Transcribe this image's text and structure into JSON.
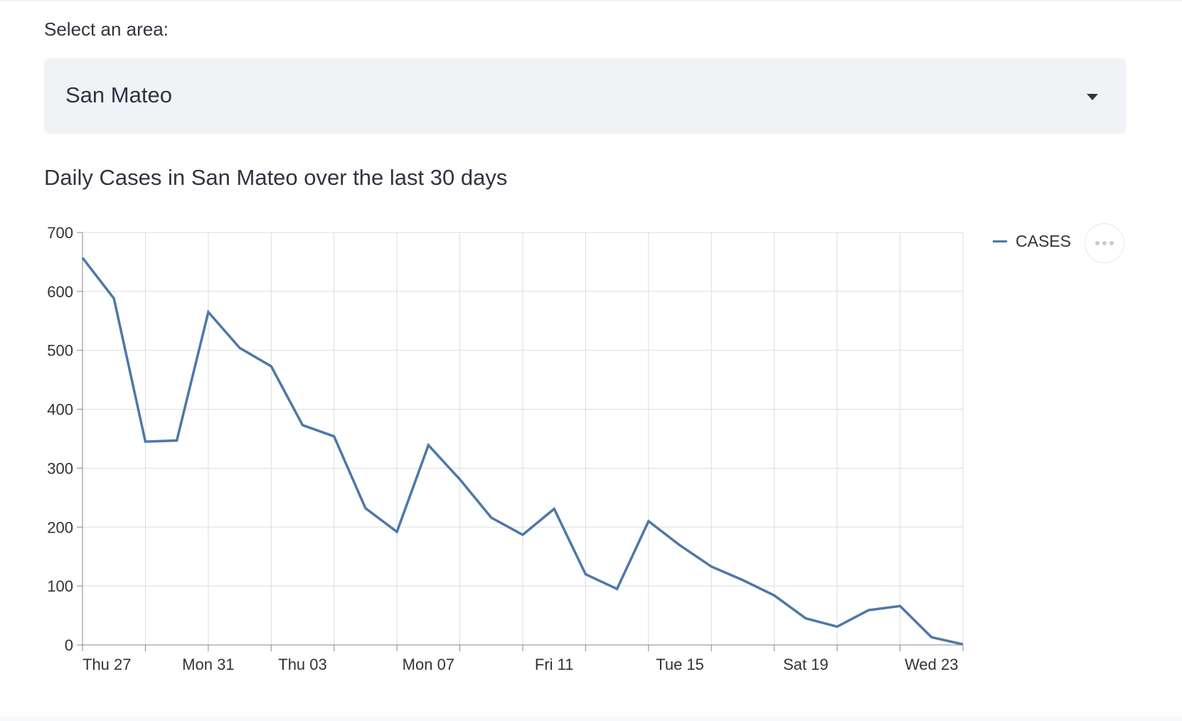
{
  "select": {
    "label": "Select an area:",
    "value": "San Mateo",
    "caret_icon": "caret-down-icon"
  },
  "chart_title": "Daily Cases in San Mateo over the last 30 days",
  "menu": {
    "icon": "more-horizontal-icon"
  },
  "colors": {
    "series": "#4c78a8",
    "grid": "#dddddd",
    "axis": "#888888"
  },
  "chart_data": {
    "type": "line",
    "x_type": "date",
    "x": [
      "2021-05-27",
      "2021-05-28",
      "2021-05-29",
      "2021-05-30",
      "2021-05-31",
      "2021-06-01",
      "2021-06-02",
      "2021-06-03",
      "2021-06-04",
      "2021-06-05",
      "2021-06-06",
      "2021-06-07",
      "2021-06-08",
      "2021-06-09",
      "2021-06-10",
      "2021-06-11",
      "2021-06-12",
      "2021-06-13",
      "2021-06-14",
      "2021-06-15",
      "2021-06-16",
      "2021-06-17",
      "2021-06-18",
      "2021-06-19",
      "2021-06-20",
      "2021-06-21",
      "2021-06-22",
      "2021-06-23",
      "2021-06-24"
    ],
    "series": [
      {
        "name": "CASES",
        "values": [
          657,
          588,
          345,
          347,
          565,
          504,
          473,
          373,
          354,
          232,
          192,
          339,
          281,
          216,
          187,
          231,
          120,
          95,
          210,
          169,
          133,
          110,
          84,
          45,
          31,
          59,
          66,
          13,
          1
        ]
      }
    ],
    "x_tick_labels": [
      "Thu 27",
      "Mon 31",
      "Thu 03",
      "Mon 07",
      "Fri 11",
      "Tue 15",
      "Sat 19",
      "Wed 23"
    ],
    "x_tick_label_dates": [
      "2021-05-27",
      "2021-05-31",
      "2021-06-03",
      "2021-06-07",
      "2021-06-11",
      "2021-06-15",
      "2021-06-19",
      "2021-06-23"
    ],
    "y_ticks": [
      0,
      100,
      200,
      300,
      400,
      500,
      600,
      700
    ],
    "ylim": [
      0,
      700
    ],
    "grid": true,
    "legend": "top-right"
  }
}
